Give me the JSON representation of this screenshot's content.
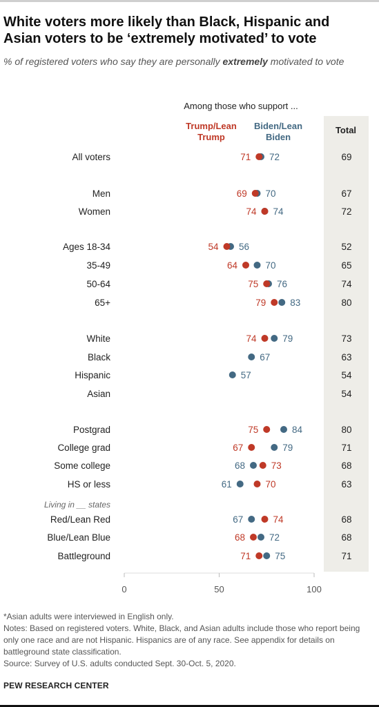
{
  "title": "White voters more likely than Black, Hispanic and Asian voters to be ‘extremely motivated’ to vote",
  "subtitle": {
    "prefix": "% of registered voters who say they are personally ",
    "emphasis": "extremely",
    "suffix": " motivated to vote"
  },
  "chart_data": {
    "type": "scatter",
    "subtype": "dot plot",
    "header": "Among those who support ...",
    "series": [
      {
        "name": "Trump/Lean Trump",
        "label_lines": [
          "Trump/Lean",
          "Trump"
        ],
        "color": "#bf3927",
        "values": [
          71,
          69,
          74,
          54,
          64,
          75,
          79,
          74,
          null,
          null,
          null,
          75,
          67,
          73,
          70,
          74,
          68,
          71
        ]
      },
      {
        "name": "Biden/Lean Biden",
        "label_lines": [
          "Biden/Lean",
          "Biden"
        ],
        "color": "#436983",
        "values": [
          72,
          70,
          74,
          56,
          70,
          76,
          83,
          79,
          67,
          57,
          null,
          84,
          79,
          68,
          61,
          67,
          72,
          75
        ]
      }
    ],
    "total_header": "Total",
    "total_bg": "#eeede8",
    "categories": [
      "All voters",
      "Men",
      "Women",
      "Ages 18-34",
      "35-49",
      "50-64",
      "65+",
      "White",
      "Black",
      "Hispanic",
      "Asian",
      "Postgrad",
      "College grad",
      "Some college",
      "HS or less",
      "Red/Lean Red",
      "Blue/Lean Blue",
      "Battleground"
    ],
    "totals": [
      69,
      67,
      72,
      52,
      65,
      74,
      80,
      73,
      63,
      54,
      54,
      80,
      71,
      68,
      63,
      68,
      68,
      71
    ],
    "group_label": "Living in __ states",
    "xlim": [
      0,
      100
    ],
    "xticks": [
      0,
      50,
      100
    ],
    "grid": false
  },
  "footer": {
    "note1": "*Asian adults were interviewed in English only.",
    "note2": "Notes: Based on registered voters. White, Black, and Asian adults include those who report being only one race and are not Hispanic. Hispanics are of any race. See appendix for details on battleground state classification.",
    "source": "Source: Survey of U.S. adults conducted Sept. 30-Oct. 5, 2020."
  },
  "brand": "PEW RESEARCH CENTER"
}
